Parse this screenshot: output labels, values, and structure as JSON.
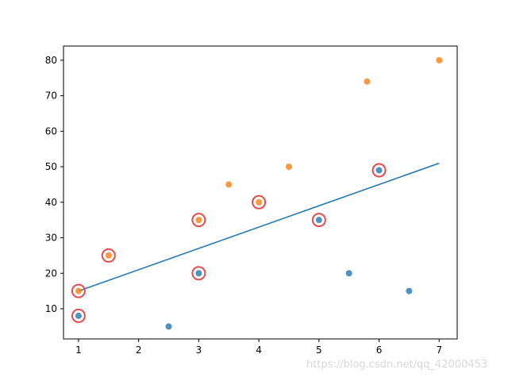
{
  "chart_data": {
    "type": "scatter",
    "title": "",
    "xlabel": "",
    "ylabel": "",
    "xlim": [
      0.75,
      7.3
    ],
    "ylim": [
      1.5,
      84
    ],
    "x_ticks": [
      1,
      2,
      3,
      4,
      5,
      6,
      7
    ],
    "y_ticks": [
      10,
      20,
      30,
      40,
      50,
      60,
      70,
      80
    ],
    "grid": false,
    "series": [
      {
        "kind": "scatter",
        "color": "#1f77b4",
        "points": [
          {
            "x": 1,
            "y": 8
          },
          {
            "x": 2.5,
            "y": 5
          },
          {
            "x": 3,
            "y": 20
          },
          {
            "x": 5,
            "y": 35
          },
          {
            "x": 5.5,
            "y": 20
          },
          {
            "x": 6,
            "y": 49
          },
          {
            "x": 6.5,
            "y": 15
          }
        ]
      },
      {
        "kind": "scatter",
        "color": "#ff7f0e",
        "points": [
          {
            "x": 1,
            "y": 15
          },
          {
            "x": 1.5,
            "y": 25
          },
          {
            "x": 3,
            "y": 35
          },
          {
            "x": 3.5,
            "y": 45
          },
          {
            "x": 4,
            "y": 40
          },
          {
            "x": 4.5,
            "y": 50
          },
          {
            "x": 5.8,
            "y": 74
          },
          {
            "x": 7,
            "y": 80
          }
        ]
      },
      {
        "kind": "line",
        "color": "#1f77b4",
        "points": [
          {
            "x": 1,
            "y": 15
          },
          {
            "x": 7,
            "y": 51
          }
        ]
      },
      {
        "kind": "ring",
        "color": "#e84a4a",
        "points": [
          {
            "x": 1,
            "y": 8
          },
          {
            "x": 1,
            "y": 15
          },
          {
            "x": 1.5,
            "y": 25
          },
          {
            "x": 3,
            "y": 20
          },
          {
            "x": 3,
            "y": 35
          },
          {
            "x": 4,
            "y": 40
          },
          {
            "x": 5,
            "y": 35
          },
          {
            "x": 6,
            "y": 49
          }
        ]
      }
    ]
  },
  "watermark": "https://blog.csdn.net/qq_42000453"
}
